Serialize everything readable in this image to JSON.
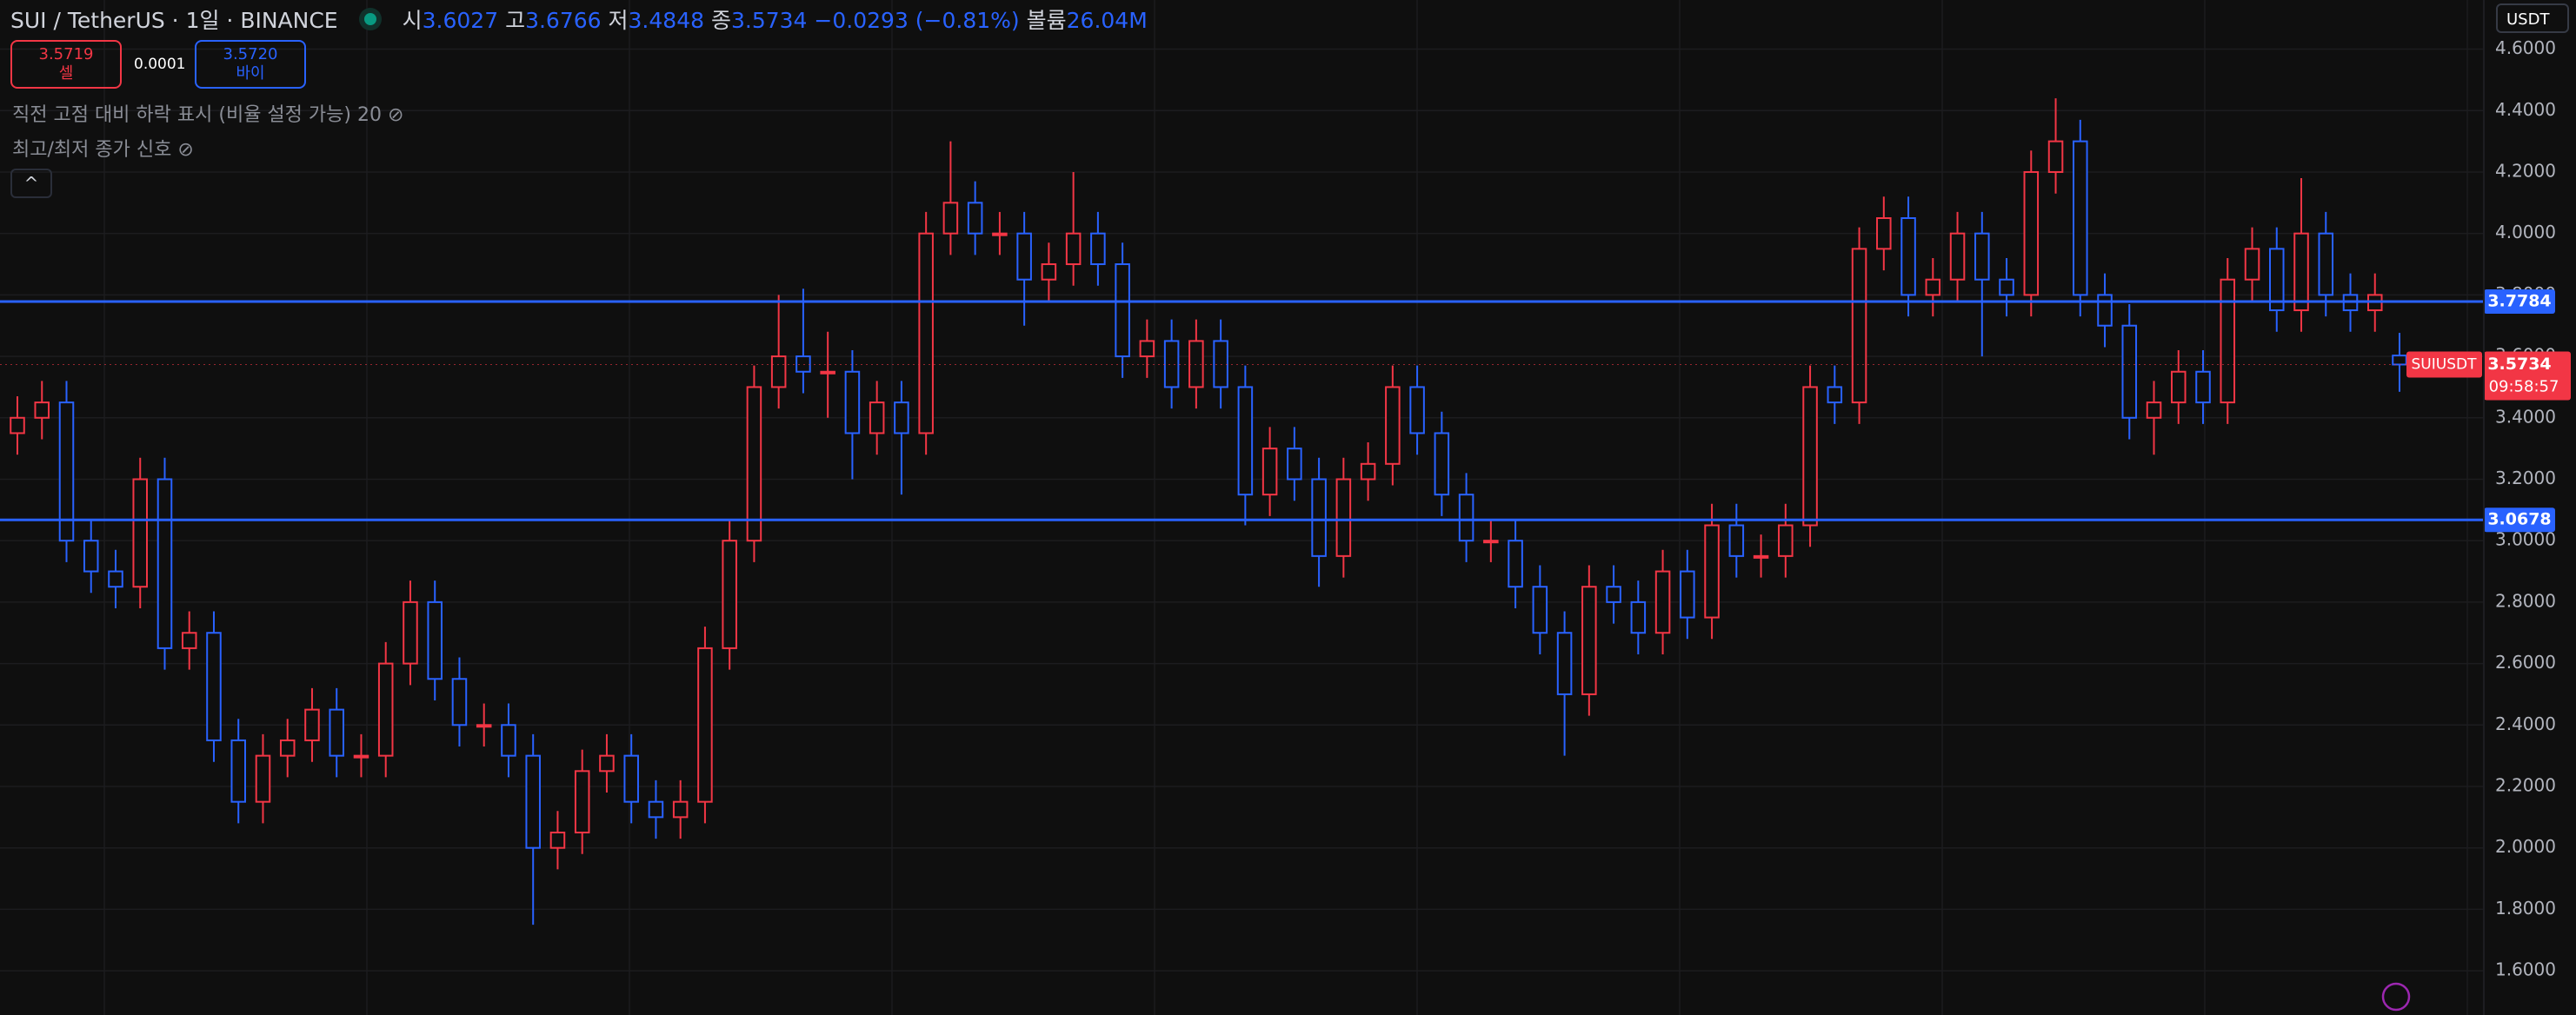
{
  "header": {
    "symbol": "SUI / TetherUS · 1일 · BINANCE",
    "open_label": "시",
    "open": "3.6027",
    "high_label": "고",
    "high": "3.6766",
    "low_label": "저",
    "low": "3.4848",
    "close_label": "종",
    "close": "3.5734",
    "change": "−0.0293 (−0.81%)",
    "volume_label": "볼륨",
    "volume": "26.04M"
  },
  "trade": {
    "sell_price": "3.5719",
    "sell_label": "셀",
    "spread": "0.0001",
    "buy_price": "3.5720",
    "buy_label": "바이"
  },
  "indicators": [
    "직전 고점 대비 하락 표시 (비율 설정 가능) 20",
    "최고/최저 종가 신호"
  ],
  "currency": "USDT",
  "chart_data": {
    "type": "candlestick",
    "up_color": "#f23645",
    "down_color": "#2962ff",
    "grid": true,
    "ylim": [
      1.456,
      4.76
    ],
    "yticks": [
      {
        "value": 1.6,
        "label": "1.6000"
      },
      {
        "value": 1.8,
        "label": "1.8000"
      },
      {
        "value": 2.0,
        "label": "2.0000"
      },
      {
        "value": 2.2,
        "label": "2.2000"
      },
      {
        "value": 2.4,
        "label": "2.4000"
      },
      {
        "value": 2.6,
        "label": "2.6000"
      },
      {
        "value": 2.8,
        "label": "2.8000"
      },
      {
        "value": 3.0,
        "label": "3.0000"
      },
      {
        "value": 3.2,
        "label": "3.2000"
      },
      {
        "value": 3.4,
        "label": "3.4000"
      },
      {
        "value": 3.6,
        "label": "3.6000"
      },
      {
        "value": 3.8,
        "label": "3.8000"
      },
      {
        "value": 4.0,
        "label": "4.0000"
      },
      {
        "value": 4.2,
        "label": "4.2000"
      },
      {
        "value": 4.4,
        "label": "4.4000"
      },
      {
        "value": 4.6,
        "label": "4.6000"
      }
    ],
    "open": [
      3.35,
      3.4,
      3.45,
      3.0,
      2.9,
      2.85,
      3.2,
      2.65,
      2.7,
      2.35,
      2.15,
      2.3,
      2.35,
      2.45,
      2.3,
      2.3,
      2.6,
      2.8,
      2.55,
      2.4,
      2.4,
      2.3,
      2.0,
      2.05,
      2.25,
      2.3,
      2.15,
      2.1,
      2.15,
      2.65,
      3.0,
      3.5,
      3.6,
      3.55,
      3.55,
      3.35,
      3.45,
      3.35,
      4.0,
      4.1,
      4.0,
      4.0,
      3.85,
      3.9,
      4.0,
      3.9,
      3.6,
      3.65,
      3.5,
      3.65,
      3.5,
      3.15,
      3.3,
      3.2,
      2.95,
      3.2,
      3.25,
      3.5,
      3.35,
      3.15,
      3.0,
      3.0,
      2.85,
      2.7,
      2.5,
      2.85,
      2.8,
      2.7,
      2.9,
      2.75,
      3.05,
      2.95,
      2.95,
      3.05,
      3.5,
      3.45,
      3.95,
      4.05,
      3.8,
      3.85,
      4.0,
      3.85,
      3.8,
      4.2,
      4.3,
      3.8,
      3.7,
      3.4,
      3.45,
      3.55,
      3.45,
      3.85,
      3.95,
      3.75,
      4.0,
      3.8,
      3.75,
      3.6027
    ],
    "high": [
      3.47,
      3.52,
      3.52,
      3.07,
      2.97,
      3.27,
      3.27,
      2.77,
      2.77,
      2.42,
      2.37,
      2.42,
      2.52,
      2.52,
      2.37,
      2.67,
      2.87,
      2.87,
      2.62,
      2.47,
      2.47,
      2.37,
      2.12,
      2.32,
      2.37,
      2.37,
      2.22,
      2.22,
      2.72,
      3.07,
      3.57,
      3.8,
      3.82,
      3.68,
      3.62,
      3.52,
      3.52,
      4.07,
      4.3,
      4.17,
      4.07,
      4.07,
      3.97,
      4.2,
      4.07,
      3.97,
      3.72,
      3.72,
      3.72,
      3.72,
      3.57,
      3.37,
      3.37,
      3.27,
      3.27,
      3.32,
      3.57,
      3.57,
      3.42,
      3.22,
      3.07,
      3.07,
      2.92,
      2.77,
      2.92,
      2.92,
      2.87,
      2.97,
      2.97,
      3.12,
      3.12,
      3.02,
      3.12,
      3.57,
      3.57,
      4.02,
      4.12,
      4.12,
      3.92,
      4.07,
      4.07,
      3.92,
      4.27,
      4.44,
      4.37,
      3.87,
      3.77,
      3.52,
      3.62,
      3.62,
      3.92,
      4.02,
      4.02,
      4.18,
      4.07,
      3.87,
      3.87,
      3.6766
    ],
    "low": [
      3.28,
      3.33,
      2.93,
      2.83,
      2.78,
      2.78,
      2.58,
      2.58,
      2.28,
      2.08,
      2.08,
      2.23,
      2.28,
      2.23,
      2.23,
      2.23,
      2.53,
      2.48,
      2.33,
      2.33,
      2.23,
      1.75,
      1.93,
      1.98,
      2.18,
      2.08,
      2.03,
      2.03,
      2.08,
      2.58,
      2.93,
      3.43,
      3.48,
      3.4,
      3.2,
      3.28,
      3.15,
      3.28,
      3.93,
      3.93,
      3.93,
      3.7,
      3.78,
      3.83,
      3.83,
      3.53,
      3.53,
      3.43,
      3.43,
      3.43,
      3.05,
      3.08,
      3.13,
      2.85,
      2.88,
      3.13,
      3.18,
      3.28,
      3.08,
      2.93,
      2.93,
      2.78,
      2.63,
      2.3,
      2.43,
      2.73,
      2.63,
      2.63,
      2.68,
      2.68,
      2.88,
      2.88,
      2.88,
      2.98,
      3.38,
      3.38,
      3.88,
      3.73,
      3.73,
      3.78,
      3.6,
      3.73,
      3.73,
      4.13,
      3.73,
      3.63,
      3.33,
      3.28,
      3.38,
      3.38,
      3.38,
      3.78,
      3.68,
      3.68,
      3.73,
      3.68,
      3.68,
      3.4848
    ],
    "close": [
      3.4,
      3.45,
      3.0,
      2.9,
      2.85,
      3.2,
      2.65,
      2.7,
      2.35,
      2.15,
      2.3,
      2.35,
      2.45,
      2.3,
      2.3,
      2.6,
      2.8,
      2.55,
      2.4,
      2.4,
      2.3,
      2.0,
      2.05,
      2.25,
      2.3,
      2.15,
      2.1,
      2.15,
      2.65,
      3.0,
      3.5,
      3.6,
      3.55,
      3.55,
      3.35,
      3.45,
      3.35,
      4.0,
      4.1,
      4.0,
      4.0,
      3.85,
      3.9,
      4.0,
      3.9,
      3.6,
      3.65,
      3.5,
      3.65,
      3.5,
      3.15,
      3.3,
      3.2,
      2.95,
      3.2,
      3.25,
      3.5,
      3.35,
      3.15,
      3.0,
      3.0,
      2.85,
      2.7,
      2.5,
      2.85,
      2.8,
      2.7,
      2.9,
      2.75,
      3.05,
      2.95,
      2.95,
      3.05,
      3.5,
      3.45,
      3.95,
      4.05,
      3.8,
      3.85,
      4.0,
      3.85,
      3.8,
      4.2,
      4.3,
      3.8,
      3.7,
      3.4,
      3.45,
      3.55,
      3.45,
      3.85,
      3.95,
      3.75,
      4.0,
      3.8,
      3.75,
      3.8,
      3.5734
    ],
    "hlines": [
      3.7784,
      3.0678
    ],
    "hline_color": "#2962ff",
    "last": {
      "symbol": "SUIUSDT",
      "price": 3.5734,
      "countdown": "09:58:57"
    }
  }
}
